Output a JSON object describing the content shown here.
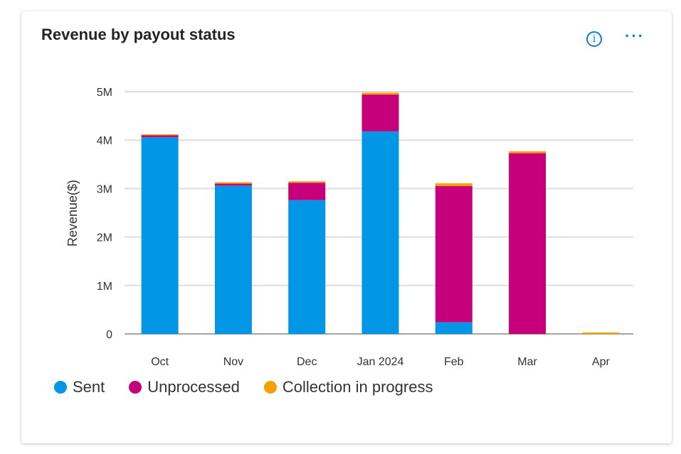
{
  "header": {
    "title": "Revenue by payout status",
    "info_icon": "info-icon",
    "more_icon": "ellipsis-icon"
  },
  "chart_data": {
    "type": "bar",
    "stacked": true,
    "title": "Revenue by payout status",
    "xlabel": "",
    "ylabel": "Revenue($)",
    "ylim": [
      0,
      5000000
    ],
    "yticks": [
      {
        "v": 0,
        "label": "0"
      },
      {
        "v": 1000000,
        "label": "1M"
      },
      {
        "v": 2000000,
        "label": "2M"
      },
      {
        "v": 3000000,
        "label": "3M"
      },
      {
        "v": 4000000,
        "label": "4M"
      },
      {
        "v": 5000000,
        "label": "5M"
      }
    ],
    "grid": true,
    "legend_position": "bottom-left",
    "categories": [
      "Oct",
      "Nov",
      "Dec",
      "Jan 2024",
      "Feb",
      "Mar",
      "Apr"
    ],
    "series": [
      {
        "name": "Sent",
        "color": "#0197E6",
        "values": [
          4060000,
          3060000,
          2760000,
          4180000,
          240000,
          0,
          0
        ]
      },
      {
        "name": "Unprocessed",
        "color": "#C6007A",
        "values": [
          40000,
          40000,
          360000,
          760000,
          2810000,
          3730000,
          0
        ]
      },
      {
        "name": "Collection in progress",
        "color": "#F7A100",
        "values": [
          20000,
          30000,
          30000,
          40000,
          60000,
          40000,
          30000
        ]
      }
    ]
  }
}
